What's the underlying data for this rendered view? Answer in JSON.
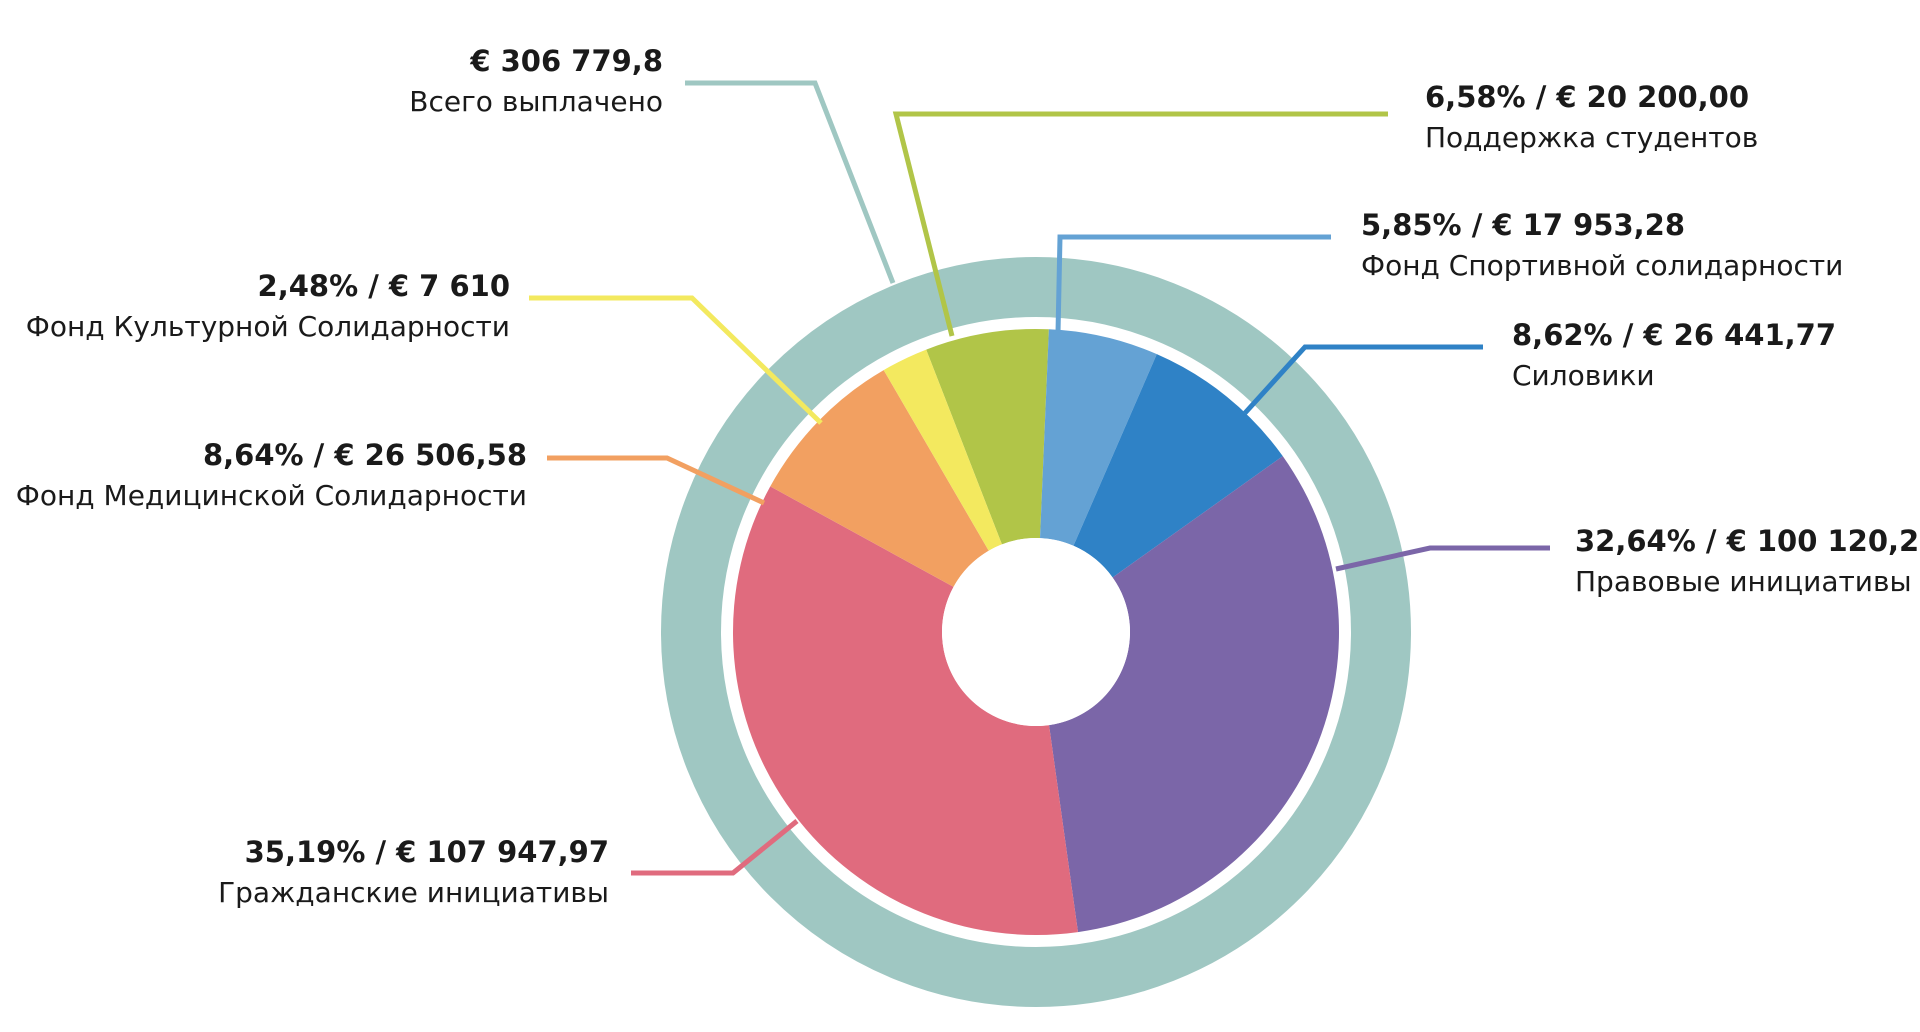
{
  "chart_data": {
    "type": "pie",
    "total": {
      "value_label": "€ 306 779,8",
      "label": "Всего выплачено",
      "color": "#9fc7c2"
    },
    "series": [
      {
        "name": "Поддержка студентов",
        "percent": 6.58,
        "amount": 20200.0,
        "value_label": "6,58% / € 20 200,00",
        "color": "#b1c548"
      },
      {
        "name": "Фонд Спортивной солидарности",
        "percent": 5.85,
        "amount": 17953.28,
        "value_label": "5,85% / € 17 953,28",
        "color": "#64a2d4"
      },
      {
        "name": "Силовики",
        "percent": 8.62,
        "amount": 26441.77,
        "value_label": "8,62% / € 26 441,77",
        "color": "#2f82c6"
      },
      {
        "name": "Правовые инициативы",
        "percent": 32.64,
        "amount": 100120.2,
        "value_label": "32,64% / € 100 120,2",
        "color": "#7b66a8"
      },
      {
        "name": "Гражданские инициативы",
        "percent": 35.19,
        "amount": 107947.97,
        "value_label": "35,19% / € 107 947,97",
        "color": "#e06b7e"
      },
      {
        "name": "Фонд Медицинской Солидарности",
        "percent": 8.64,
        "amount": 26506.58,
        "value_label": "8,64% / € 26 506,58",
        "color": "#f2a061"
      },
      {
        "name": "Фонд Культурной Солидарности",
        "percent": 2.48,
        "amount": 7610,
        "value_label": "2,48% / € 7 610",
        "color": "#f3e95f"
      }
    ]
  }
}
